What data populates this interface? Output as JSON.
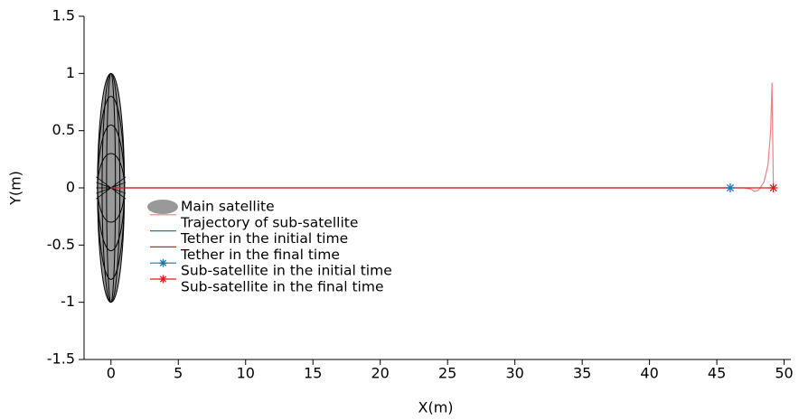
{
  "chart_data": {
    "type": "line",
    "xlabel": "X(m)",
    "ylabel": "Y(m)",
    "xlim": [
      -2,
      50.5
    ],
    "ylim": [
      -1.5,
      1.5
    ],
    "xticks": [
      0,
      5,
      10,
      15,
      20,
      25,
      30,
      35,
      40,
      45,
      50
    ],
    "yticks": [
      -1.5,
      -1,
      -0.5,
      0,
      0.5,
      1,
      1.5
    ],
    "series": [
      {
        "name": "Main satellite",
        "color": "#999999",
        "shape": "ellipse",
        "center": [
          0,
          0
        ],
        "radii": [
          1,
          1
        ]
      },
      {
        "name": "Trajectory of sub-satellite",
        "color": "#f08080",
        "x": [
          46,
          47,
          47.5,
          47.8,
          48.1,
          48.5,
          48.8,
          49,
          49.1,
          49.2
        ],
        "y": [
          0,
          0,
          -0.01,
          -0.03,
          -0.02,
          0.05,
          0.2,
          0.5,
          0.92,
          0
        ]
      },
      {
        "name": "Tether in the initial time",
        "color": "#1f77b4",
        "x": [
          0,
          46
        ],
        "y": [
          0,
          0
        ]
      },
      {
        "name": "Tether in the final time",
        "color": "#e41a1c",
        "x": [
          0,
          49.2
        ],
        "y": [
          0,
          0
        ]
      },
      {
        "name": "Sub-satellite in the initial time",
        "color": "#1f77b4",
        "marker": "*",
        "x": [
          46
        ],
        "y": [
          0
        ]
      },
      {
        "name": "Sub-satellite in the final time",
        "color": "#e41a1c",
        "marker": "*",
        "x": [
          49.2
        ],
        "y": [
          0
        ]
      }
    ]
  }
}
